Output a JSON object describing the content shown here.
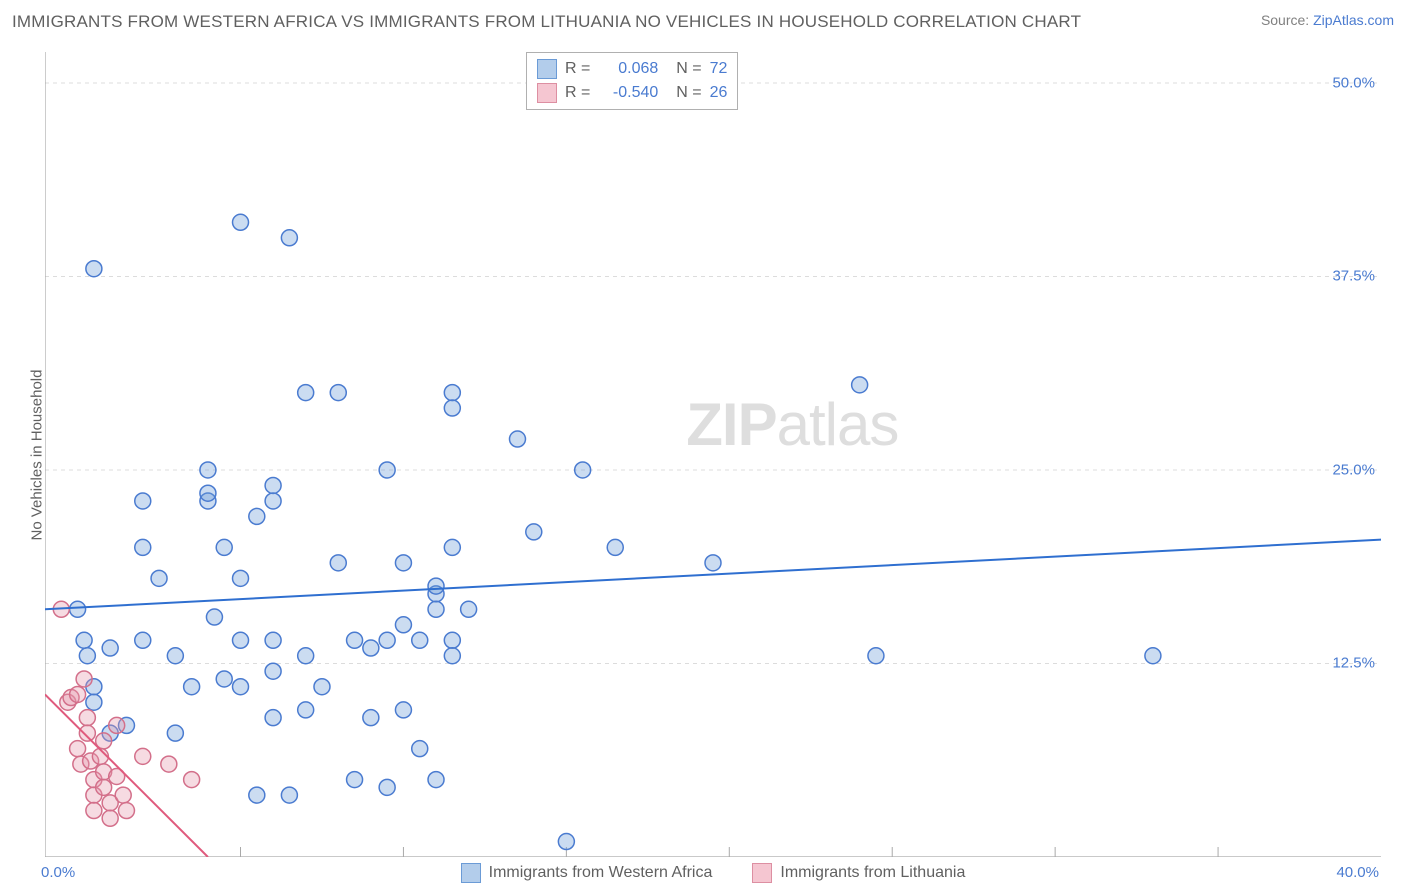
{
  "title": "IMMIGRANTS FROM WESTERN AFRICA VS IMMIGRANTS FROM LITHUANIA NO VEHICLES IN HOUSEHOLD CORRELATION CHART",
  "source_prefix": "Source: ",
  "source_link": "ZipAtlas.com",
  "ylabel": "No Vehicles in Household",
  "watermark_a": "ZIP",
  "watermark_b": "atlas",
  "legend_top": {
    "rows": [
      {
        "swatch_fill": "#b3cdeb",
        "swatch_stroke": "#6b9bd6",
        "r_label": "R =",
        "r_val": "0.068",
        "n_label": "N =",
        "n_val": "72"
      },
      {
        "swatch_fill": "#f5c6d1",
        "swatch_stroke": "#dd8fa2",
        "r_label": "R =",
        "r_val": "-0.540",
        "n_label": "N =",
        "n_val": "26"
      }
    ]
  },
  "legend_bottom": {
    "items": [
      {
        "swatch_fill": "#b3cdeb",
        "swatch_stroke": "#6b9bd6",
        "label": "Immigrants from Western Africa"
      },
      {
        "swatch_fill": "#f5c6d1",
        "swatch_stroke": "#dd8fa2",
        "label": "Immigrants from Lithuania"
      }
    ]
  },
  "chart": {
    "type": "scatter",
    "background_color": "#ffffff",
    "axis_color": "#a9a9a9",
    "grid_color": "#dcdcdc",
    "grid_dash": "4,4",
    "tick_fontsize": 15,
    "tick_color": "#4a7bd0",
    "xlim": [
      -1.0,
      40.0
    ],
    "ylim": [
      0.0,
      52.0
    ],
    "y_ticks": [
      12.5,
      25.0,
      37.5,
      50.0
    ],
    "y_tick_labels": [
      "12.5%",
      "25.0%",
      "37.5%",
      "50.0%"
    ],
    "x_tick_labels": [
      "0.0%",
      "40.0%"
    ],
    "x_minor_grid": [
      5,
      10,
      15,
      20,
      25,
      30,
      35
    ],
    "marker_radius": 8,
    "marker_stroke_width": 1.5,
    "marker_fill_opacity": 0.35,
    "line_width": 2,
    "series": [
      {
        "name": "western_africa",
        "color_fill": "#6b9bd6",
        "color_stroke": "#4a7bd0",
        "trend": {
          "x1": -1.0,
          "y1": 16.0,
          "x2": 40.0,
          "y2": 20.5,
          "color": "#2f6fd0"
        },
        "points": [
          [
            0.2,
            14.0
          ],
          [
            0.3,
            13.0
          ],
          [
            0.5,
            38.0
          ],
          [
            0.5,
            11.0
          ],
          [
            0.5,
            10.0
          ],
          [
            1.0,
            8.0
          ],
          [
            1.0,
            13.5
          ],
          [
            1.5,
            8.5
          ],
          [
            2.0,
            23.0
          ],
          [
            2.0,
            20.0
          ],
          [
            2.0,
            14.0
          ],
          [
            2.5,
            18.0
          ],
          [
            3.0,
            13.0
          ],
          [
            3.0,
            8.0
          ],
          [
            3.5,
            11.0
          ],
          [
            4.0,
            25.0
          ],
          [
            4.0,
            23.0
          ],
          [
            4.0,
            23.5
          ],
          [
            4.2,
            15.5
          ],
          [
            4.5,
            20.0
          ],
          [
            4.5,
            11.5
          ],
          [
            5.0,
            41.0
          ],
          [
            5.0,
            18.0
          ],
          [
            5.0,
            14.0
          ],
          [
            5.0,
            11.0
          ],
          [
            5.5,
            22.0
          ],
          [
            5.5,
            4.0
          ],
          [
            6.0,
            24.0
          ],
          [
            6.0,
            23.0
          ],
          [
            6.0,
            14.0
          ],
          [
            6.0,
            12.0
          ],
          [
            6.0,
            9.0
          ],
          [
            6.5,
            40.0
          ],
          [
            6.5,
            4.0
          ],
          [
            7.0,
            30.0
          ],
          [
            7.0,
            13.0
          ],
          [
            7.0,
            9.5
          ],
          [
            7.5,
            11.0
          ],
          [
            8.0,
            30.0
          ],
          [
            8.0,
            19.0
          ],
          [
            8.5,
            14.0
          ],
          [
            8.5,
            5.0
          ],
          [
            9.0,
            9.0
          ],
          [
            9.0,
            13.5
          ],
          [
            9.5,
            25.0
          ],
          [
            9.5,
            14.0
          ],
          [
            9.5,
            4.5
          ],
          [
            10.0,
            19.0
          ],
          [
            10.0,
            15.0
          ],
          [
            10.0,
            9.5
          ],
          [
            10.5,
            14.0
          ],
          [
            10.5,
            7.0
          ],
          [
            11.0,
            17.0
          ],
          [
            11.0,
            17.5
          ],
          [
            11.0,
            16.0
          ],
          [
            11.0,
            5.0
          ],
          [
            11.5,
            30.0
          ],
          [
            11.5,
            29.0
          ],
          [
            11.5,
            20.0
          ],
          [
            11.5,
            14.0
          ],
          [
            11.5,
            13.0
          ],
          [
            12.0,
            16.0
          ],
          [
            13.5,
            27.0
          ],
          [
            14.0,
            21.0
          ],
          [
            15.0,
            1.0
          ],
          [
            15.5,
            25.0
          ],
          [
            16.5,
            20.0
          ],
          [
            19.5,
            19.0
          ],
          [
            24.0,
            30.5
          ],
          [
            24.5,
            13.0
          ],
          [
            33.0,
            13.0
          ],
          [
            0.0,
            16.0
          ]
        ]
      },
      {
        "name": "lithuania",
        "color_fill": "#e597ab",
        "color_stroke": "#d36f8a",
        "trend": {
          "x1": -1.0,
          "y1": 10.5,
          "x2": 4.0,
          "y2": 0.0,
          "color": "#e05a7d"
        },
        "points": [
          [
            -0.5,
            16.0
          ],
          [
            -0.3,
            10.0
          ],
          [
            -0.2,
            10.3
          ],
          [
            0.0,
            10.5
          ],
          [
            0.0,
            7.0
          ],
          [
            0.1,
            6.0
          ],
          [
            0.2,
            11.5
          ],
          [
            0.3,
            9.0
          ],
          [
            0.3,
            8.0
          ],
          [
            0.4,
            6.2
          ],
          [
            0.5,
            5.0
          ],
          [
            0.5,
            4.0
          ],
          [
            0.5,
            3.0
          ],
          [
            0.7,
            6.5
          ],
          [
            0.8,
            5.5
          ],
          [
            0.8,
            4.5
          ],
          [
            0.8,
            7.5
          ],
          [
            1.0,
            3.5
          ],
          [
            1.0,
            2.5
          ],
          [
            1.2,
            8.5
          ],
          [
            1.2,
            5.2
          ],
          [
            1.4,
            4.0
          ],
          [
            1.5,
            3.0
          ],
          [
            2.0,
            6.5
          ],
          [
            2.8,
            6.0
          ],
          [
            3.5,
            5.0
          ]
        ]
      }
    ]
  }
}
